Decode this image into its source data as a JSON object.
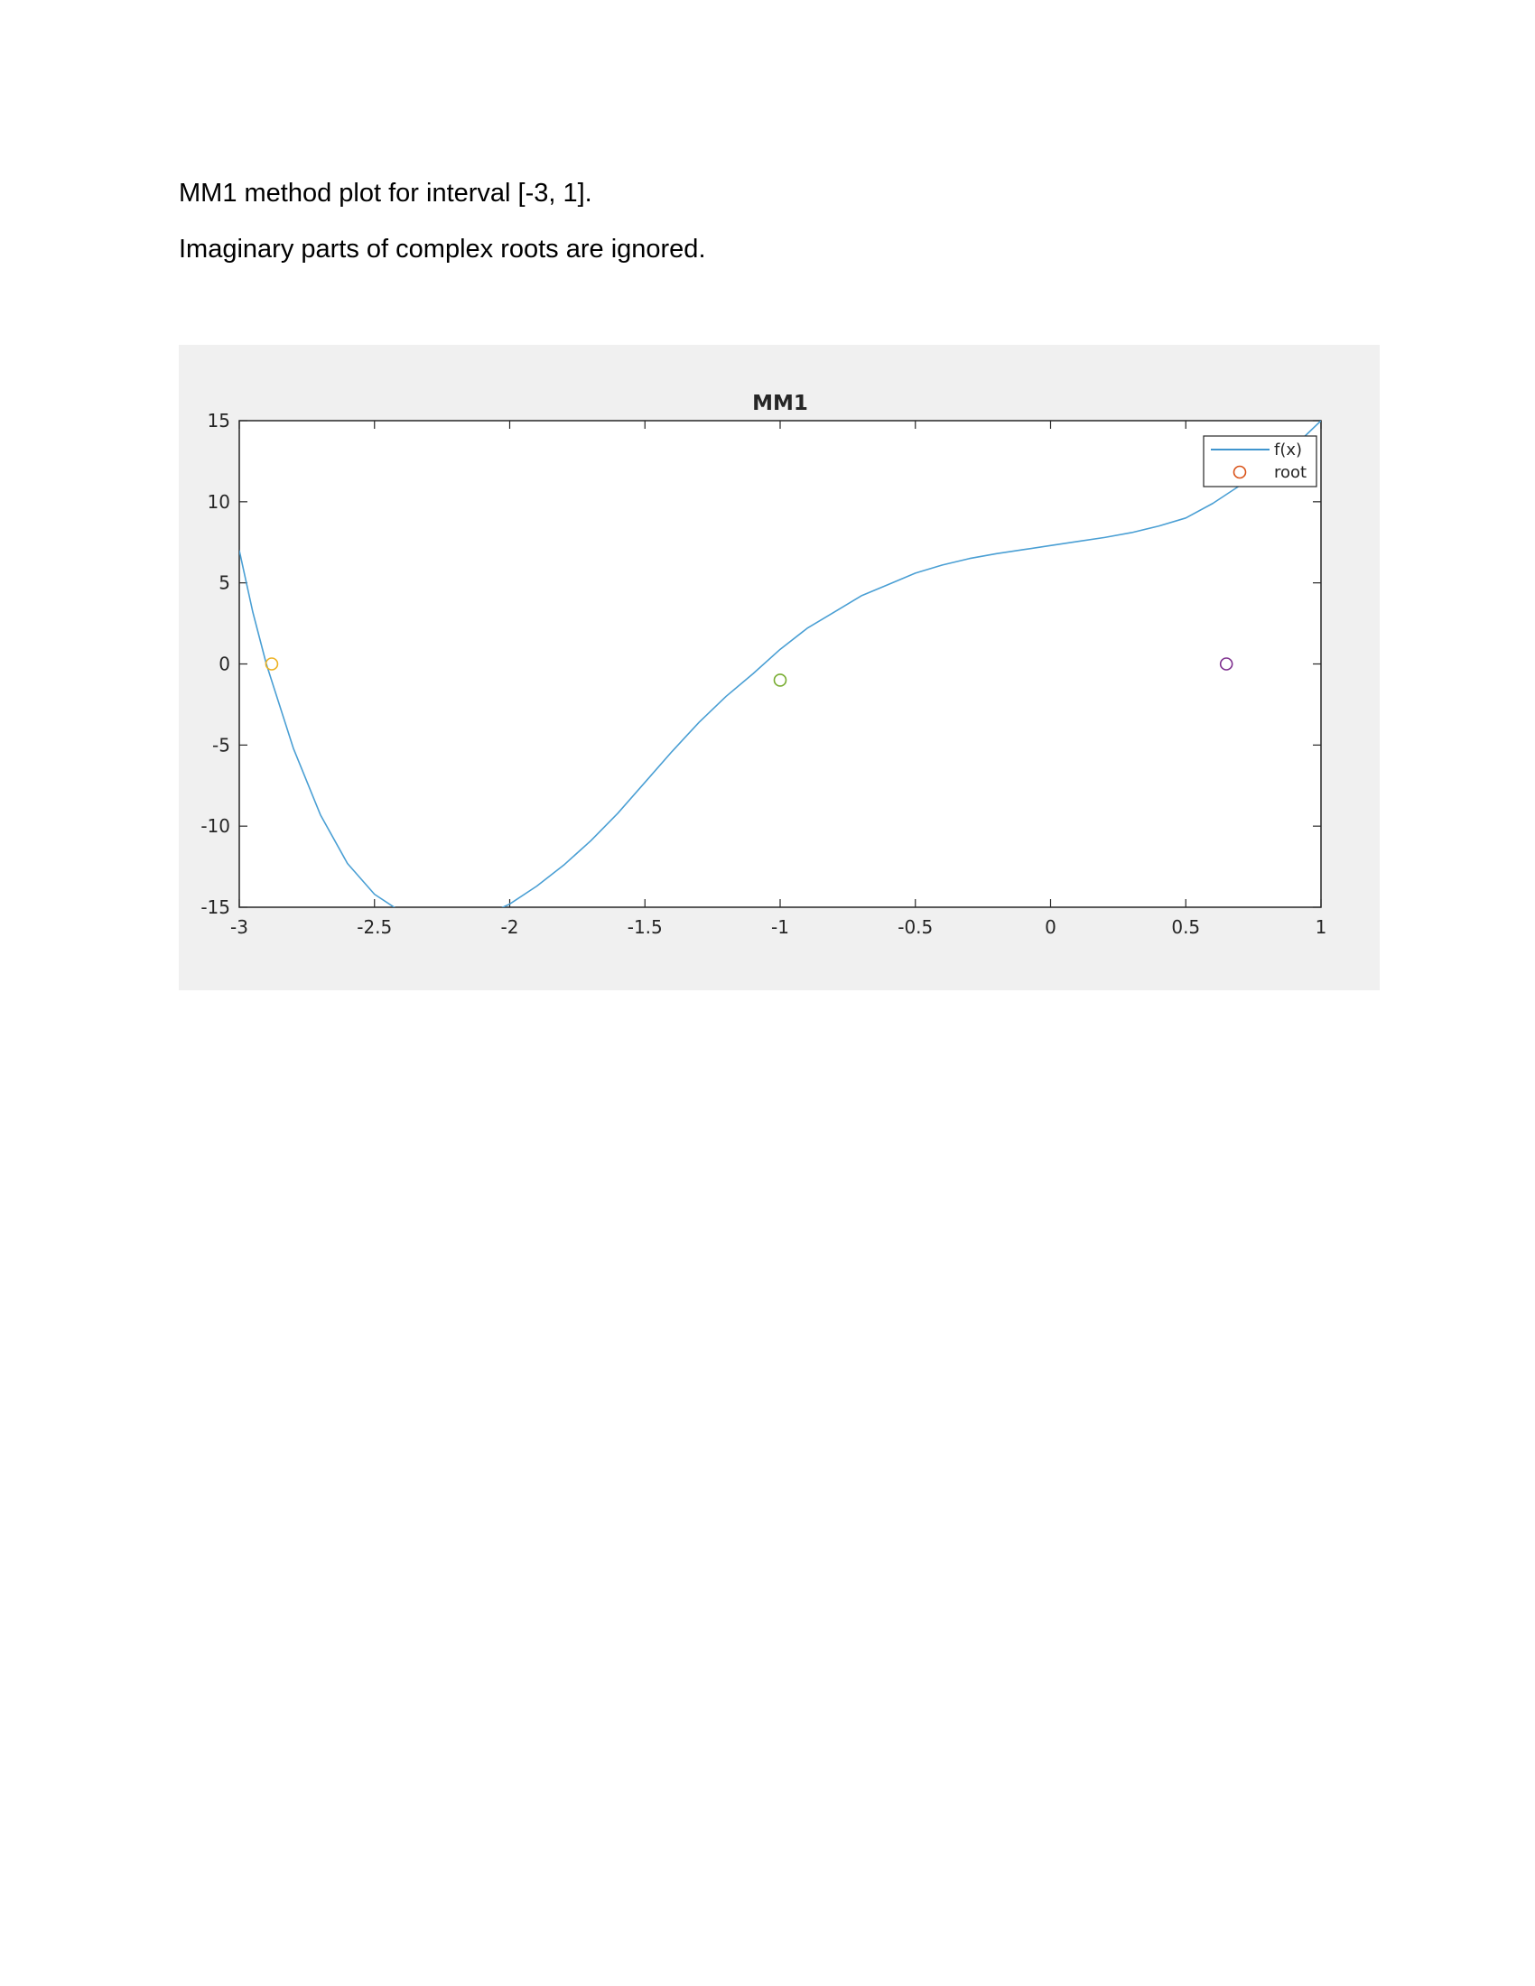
{
  "document": {
    "line1": "MM1 method plot for interval [-3, 1].",
    "line2": "Imaginary parts of complex roots are ignored."
  },
  "chart_data": {
    "type": "line",
    "title": "MM1",
    "xlabel": "",
    "ylabel": "",
    "xlim": [
      -3,
      1
    ],
    "ylim": [
      -15,
      15
    ],
    "xticks": [
      -3,
      -2.5,
      -2,
      -1.5,
      -1,
      -0.5,
      0,
      0.5,
      1
    ],
    "xtick_labels": [
      "-3",
      "-2.5",
      "-2",
      "-1.5",
      "-1",
      "-0.5",
      "0",
      "0.5",
      "1"
    ],
    "yticks": [
      15,
      10,
      5,
      0,
      -5,
      -10,
      -15
    ],
    "ytick_labels": [
      "15",
      "10",
      "5",
      "0",
      "-5",
      "-10",
      "-15"
    ],
    "grid": false,
    "legend_position": "top-right",
    "legend": [
      {
        "label": "f(x)",
        "marker": "line",
        "color": "#0072BD"
      },
      {
        "label": "root",
        "marker": "circle",
        "color": "#D95319"
      }
    ],
    "series": [
      {
        "name": "f(x)",
        "color": "#4a9fd4",
        "points": [
          [
            -3.0,
            7.0
          ],
          [
            -2.95,
            3.2
          ],
          [
            -2.9,
            0.0
          ],
          [
            -2.8,
            -5.2
          ],
          [
            -2.7,
            -9.3
          ],
          [
            -2.6,
            -12.3
          ],
          [
            -2.5,
            -14.2
          ],
          [
            -2.4,
            -15.3
          ],
          [
            -2.3,
            -15.8
          ],
          [
            -2.2,
            -15.9
          ],
          [
            -2.1,
            -15.6
          ],
          [
            -2.0,
            -14.8
          ],
          [
            -1.9,
            -13.7
          ],
          [
            -1.8,
            -12.4
          ],
          [
            -1.7,
            -10.9
          ],
          [
            -1.6,
            -9.2
          ],
          [
            -1.5,
            -7.3
          ],
          [
            -1.4,
            -5.4
          ],
          [
            -1.3,
            -3.6
          ],
          [
            -1.2,
            -2.0
          ],
          [
            -1.1,
            -0.6
          ],
          [
            -1.0,
            0.9
          ],
          [
            -0.9,
            2.2
          ],
          [
            -0.8,
            3.2
          ],
          [
            -0.7,
            4.2
          ],
          [
            -0.6,
            4.9
          ],
          [
            -0.5,
            5.6
          ],
          [
            -0.4,
            6.1
          ],
          [
            -0.3,
            6.5
          ],
          [
            -0.2,
            6.8
          ],
          [
            -0.1,
            7.05
          ],
          [
            0.0,
            7.3
          ],
          [
            0.1,
            7.55
          ],
          [
            0.2,
            7.8
          ],
          [
            0.3,
            8.1
          ],
          [
            0.4,
            8.5
          ],
          [
            0.5,
            9.0
          ],
          [
            0.6,
            9.9
          ],
          [
            0.7,
            11.0
          ],
          [
            0.8,
            12.2
          ],
          [
            0.9,
            13.4
          ],
          [
            1.0,
            15.0
          ]
        ]
      }
    ],
    "roots": [
      {
        "x": -2.88,
        "y": 0,
        "color": "#EDB120"
      },
      {
        "x": -1.0,
        "y": -1.0,
        "color": "#77AC30"
      },
      {
        "x": 0.65,
        "y": 0,
        "color": "#7E2F8E"
      }
    ]
  }
}
